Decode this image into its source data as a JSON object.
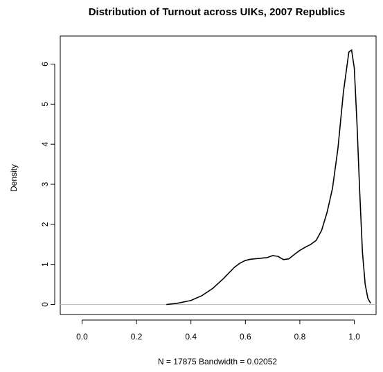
{
  "chart_data": {
    "type": "line",
    "title": "Distribution of Turnout across UIKs, 2007 Republics",
    "xlabel": "N = 17875   Bandwidth = 0.02052",
    "ylabel": "Density",
    "xlim": [
      -0.08,
      1.08
    ],
    "ylim": [
      -0.25,
      6.7
    ],
    "grid": false,
    "legend": "none",
    "baseline": 0,
    "x_ticks": [
      {
        "value": 0.0,
        "label": "0.0"
      },
      {
        "value": 0.2,
        "label": "0.2"
      },
      {
        "value": 0.4,
        "label": "0.4"
      },
      {
        "value": 0.6,
        "label": "0.6"
      },
      {
        "value": 0.8,
        "label": "0.8"
      },
      {
        "value": 1.0,
        "label": "1.0"
      }
    ],
    "y_ticks": [
      {
        "value": 0,
        "label": "0"
      },
      {
        "value": 1,
        "label": "1"
      },
      {
        "value": 2,
        "label": "2"
      },
      {
        "value": 3,
        "label": "3"
      },
      {
        "value": 4,
        "label": "4"
      },
      {
        "value": 5,
        "label": "5"
      },
      {
        "value": 6,
        "label": "6"
      }
    ],
    "series": [
      {
        "color": "#000000",
        "baseline_color": "#bfbfbf",
        "x": [
          0.31,
          0.35,
          0.4,
          0.44,
          0.48,
          0.52,
          0.56,
          0.58,
          0.6,
          0.62,
          0.65,
          0.68,
          0.7,
          0.72,
          0.74,
          0.76,
          0.78,
          0.8,
          0.82,
          0.84,
          0.86,
          0.88,
          0.9,
          0.92,
          0.94,
          0.96,
          0.98,
          0.99,
          1.0,
          1.01,
          1.02,
          1.03,
          1.04,
          1.05,
          1.06
        ],
        "y": [
          0.0,
          0.03,
          0.1,
          0.22,
          0.4,
          0.65,
          0.93,
          1.03,
          1.1,
          1.13,
          1.15,
          1.17,
          1.22,
          1.2,
          1.12,
          1.14,
          1.25,
          1.35,
          1.43,
          1.5,
          1.6,
          1.85,
          2.3,
          2.9,
          3.9,
          5.3,
          6.3,
          6.35,
          5.9,
          4.5,
          2.8,
          1.3,
          0.5,
          0.15,
          0.03
        ]
      }
    ]
  }
}
